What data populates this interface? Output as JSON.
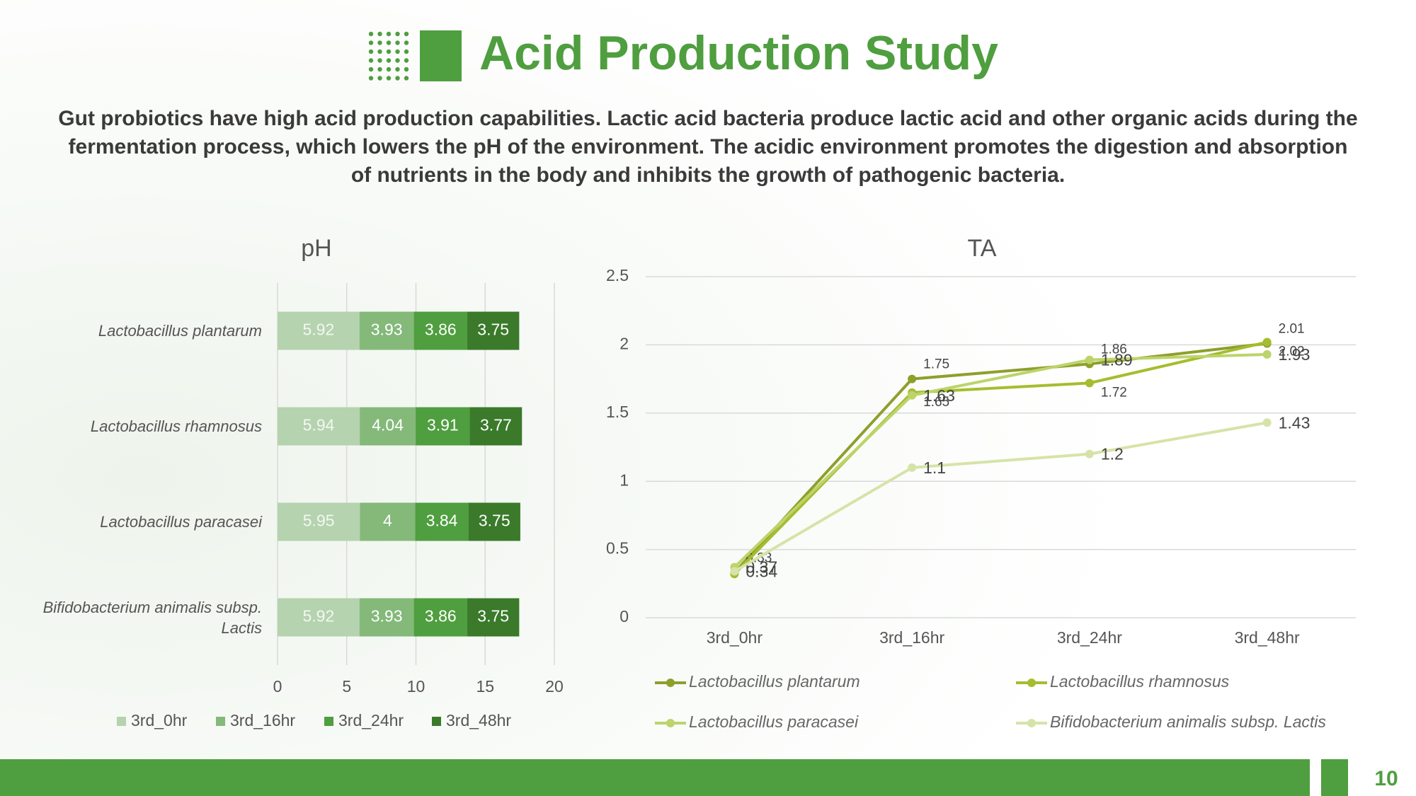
{
  "title": "Acid Production Study",
  "description": "Gut probiotics have high acid production capabilities. Lactic acid bacteria produce lactic acid and other organic acids during the fermentation process, which lowers the pH of the environment. The acidic environment promotes the digestion and absorption of nutrients in the body and inhibits the growth of pathogenic bacteria.",
  "page_number": "10",
  "chart_data": [
    {
      "type": "stacked-bar-horizontal",
      "title": "pH",
      "categories": [
        "Lactobacillus plantarum",
        "Lactobacillus rhamnosus",
        "Lactobacillus paracasei",
        "Bifidobacterium animalis subsp. Lactis"
      ],
      "series": [
        {
          "name": "3rd_0hr",
          "color": "#b5d3ae",
          "values": [
            5.92,
            5.94,
            5.95,
            5.92
          ]
        },
        {
          "name": "3rd_16hr",
          "color": "#84b97a",
          "values": [
            3.93,
            4.04,
            4,
            3.93
          ]
        },
        {
          "name": "3rd_24hr",
          "color": "#4f9e3f",
          "values": [
            3.86,
            3.91,
            3.84,
            3.86
          ]
        },
        {
          "name": "3rd_48hr",
          "color": "#3a7a2a",
          "values": [
            3.75,
            3.77,
            3.75,
            3.75
          ]
        }
      ],
      "xlim": [
        0,
        20
      ],
      "xticks": [
        0,
        5,
        10,
        15,
        20
      ],
      "grid": true,
      "legend": "bottom"
    },
    {
      "type": "line",
      "title": "TA",
      "categories": [
        "3rd_0hr",
        "3rd_16hr",
        "3rd_24hr",
        "3rd_48hr"
      ],
      "series": [
        {
          "name": "Lactobacillus plantarum",
          "color": "#8f9f2c",
          "values": [
            0.33,
            1.75,
            1.86,
            2.01
          ]
        },
        {
          "name": "Lactobacillus rhamnosus",
          "color": "#a5bd2e",
          "values": [
            0.32,
            1.65,
            1.72,
            2.02
          ],
          "value_labels": [
            null,
            "1.65",
            "1.72",
            "2.02"
          ]
        },
        {
          "name": "Lactobacillus paracasei",
          "color": "#bcd46a",
          "values": [
            0.37,
            1.63,
            1.89,
            1.93
          ]
        },
        {
          "name": "Bifidobacterium animalis subsp. Lactis",
          "color": "#d6e3a8",
          "values": [
            0.34,
            1.1,
            1.2,
            1.43
          ]
        }
      ],
      "ylim": [
        0,
        2.5
      ],
      "yticks": [
        0,
        0.5,
        1,
        1.5,
        2,
        2.5
      ],
      "grid": true,
      "legend": "bottom"
    }
  ]
}
